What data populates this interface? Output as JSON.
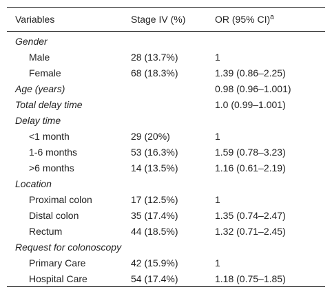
{
  "headers": {
    "variables": "Variables",
    "stage": "Stage IV (%)",
    "or": "OR (95% CI)",
    "or_sup": "a"
  },
  "rows": [
    {
      "label": "Gender",
      "stage": "",
      "or": ""
    },
    {
      "label": "Male",
      "stage": "28 (13.7%)",
      "or": "1"
    },
    {
      "label": "Female",
      "stage": "68 (18.3%)",
      "or": "1.39 (0.86–2.25)"
    },
    {
      "label": "Age (years)",
      "stage": "",
      "or": "0.98 (0.96–1.001)"
    },
    {
      "label": "Total delay time",
      "stage": "",
      "or": "1.0 (0.99–1.001)"
    },
    {
      "label": "Delay time",
      "stage": "",
      "or": ""
    },
    {
      "label": "<1 month",
      "stage": "29 (20%)",
      "or": "1"
    },
    {
      "label": "1-6 months",
      "stage": "53 (16.3%)",
      "or": "1.59 (0.78–3.23)"
    },
    {
      "label": ">6 months",
      "stage": "14 (13.5%)",
      "or": "1.16 (0.61–2.19)"
    },
    {
      "label": "Location",
      "stage": "",
      "or": ""
    },
    {
      "label": "Proximal colon",
      "stage": "17 (12.5%)",
      "or": "1"
    },
    {
      "label": "Distal colon",
      "stage": "35 (17.4%)",
      "or": "1.35 (0.74–2.47)"
    },
    {
      "label": "Rectum",
      "stage": "44 (18.5%)",
      "or": "1.32 (0.71–2.45)"
    },
    {
      "label": "Request for colonoscopy",
      "stage": "",
      "or": ""
    },
    {
      "label": "Primary Care",
      "stage": "42 (15.9%)",
      "or": "1"
    },
    {
      "label": "Hospital Care",
      "stage": "54 (17.4%)",
      "or": "1.18 (0.75–1.85)"
    }
  ]
}
